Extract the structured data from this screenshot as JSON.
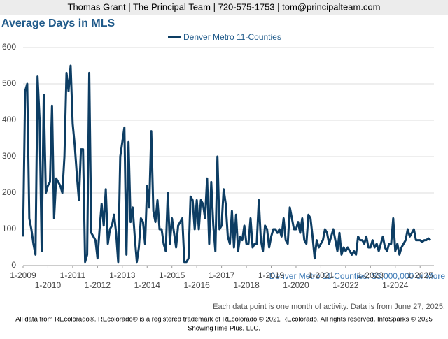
{
  "header": "Thomas Grant | The Principal Team | 720-575-1753 | tom@principalteam.com",
  "footer": [
    "All data from REcolorado®. REcolorado® is a registered trademark of REcolorado © 2021 REcolorado. All rights reserved. InfoSparks © 2025",
    "ShowingTime Plus, LLC."
  ],
  "chart_data": {
    "type": "line",
    "title": "Average Days in MLS",
    "caption": "Denver Metro 11-Counties: $3,000,000 or More",
    "note": "Each data point is one month of activity. Data is from June 27, 2025.",
    "ylim": [
      0,
      600
    ],
    "yticks": [
      0,
      100,
      200,
      300,
      400,
      500,
      600
    ],
    "grid": true,
    "categories": [
      "1-2009",
      null,
      null,
      null,
      null,
      null,
      null,
      null,
      null,
      null,
      null,
      null,
      "1-2010",
      null,
      null,
      null,
      null,
      null,
      null,
      null,
      null,
      null,
      null,
      null,
      "1-2011",
      null,
      null,
      null,
      null,
      null,
      null,
      null,
      null,
      null,
      null,
      null,
      "1-2012",
      null,
      null,
      null,
      null,
      null,
      null,
      null,
      null,
      null,
      null,
      null,
      "1-2013",
      null,
      null,
      null,
      null,
      null,
      null,
      null,
      null,
      null,
      null,
      null,
      "1-2014",
      null,
      null,
      null,
      null,
      null,
      null,
      null,
      null,
      null,
      null,
      null,
      "1-2015",
      null,
      null,
      null,
      null,
      null,
      null,
      null,
      null,
      null,
      null,
      null,
      "1-2016",
      null,
      null,
      null,
      null,
      null,
      null,
      null,
      null,
      null,
      null,
      null,
      "1-2017",
      null,
      null,
      null,
      null,
      null,
      null,
      null,
      null,
      null,
      null,
      null,
      "1-2018",
      null,
      null,
      null,
      null,
      null,
      null,
      null,
      null,
      null,
      null,
      null,
      "1-2019",
      null,
      null,
      null,
      null,
      null,
      null,
      null,
      null,
      null,
      null,
      null,
      "1-2020",
      null,
      null,
      null,
      null,
      null,
      null,
      null,
      null,
      null,
      null,
      null,
      "1-2021",
      null,
      null,
      null,
      null,
      null,
      null,
      null,
      null,
      null,
      null,
      null,
      "1-2022",
      null,
      null,
      null,
      null,
      null,
      null,
      null,
      null,
      null,
      null,
      null,
      "1-2023",
      null,
      null,
      null,
      null,
      null,
      null,
      null,
      null,
      null,
      null,
      null,
      "1-2024",
      null,
      null,
      null,
      null,
      null,
      null,
      null,
      null,
      null,
      null,
      null,
      "1-2025",
      null,
      null,
      null,
      null,
      null
    ],
    "series": [
      {
        "name": "Denver Metro 11-Counties",
        "color": "#0d3d63",
        "values": [
          80,
          480,
          500,
          130,
          100,
          60,
          30,
          520,
          400,
          40,
          470,
          200,
          220,
          230,
          440,
          130,
          240,
          230,
          220,
          200,
          300,
          530,
          480,
          550,
          390,
          330,
          250,
          180,
          320,
          320,
          10,
          30,
          530,
          90,
          80,
          70,
          20,
          100,
          170,
          110,
          210,
          60,
          100,
          110,
          140,
          90,
          10,
          300,
          340,
          380,
          30,
          340,
          120,
          160,
          80,
          10,
          50,
          130,
          120,
          60,
          220,
          160,
          370,
          150,
          120,
          180,
          100,
          100,
          60,
          40,
          200,
          60,
          130,
          90,
          50,
          110,
          120,
          130,
          10,
          10,
          20,
          190,
          180,
          100,
          180,
          100,
          180,
          170,
          130,
          240,
          60,
          230,
          110,
          40,
          300,
          100,
          110,
          210,
          170,
          80,
          60,
          150,
          50,
          140,
          40,
          80,
          70,
          110,
          60,
          60,
          130,
          50,
          60,
          60,
          180,
          70,
          40,
          110,
          100,
          50,
          80,
          100,
          100,
          90,
          100,
          80,
          130,
          70,
          60,
          160,
          130,
          100,
          100,
          120,
          90,
          130,
          70,
          60,
          140,
          130,
          80,
          20,
          70,
          50,
          60,
          70,
          100,
          90,
          60,
          80,
          100,
          70,
          40,
          90,
          30,
          50,
          40,
          50,
          40,
          30,
          40,
          30,
          80,
          70,
          70,
          60,
          80,
          50,
          50,
          70,
          50,
          60,
          40,
          60,
          80,
          50,
          40,
          60,
          60,
          130,
          40,
          60,
          30,
          50,
          60,
          70,
          100,
          80,
          90,
          100,
          70,
          70,
          70,
          65,
          70,
          70,
          75,
          70
        ]
      }
    ]
  }
}
